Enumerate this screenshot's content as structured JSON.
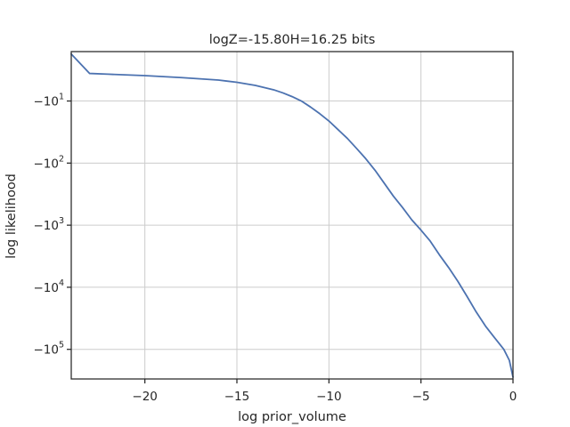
{
  "chart_data": {
    "type": "line",
    "title": "logZ=-15.80H=16.25 bits",
    "xlabel": "log prior_volume",
    "ylabel": "log likelihood",
    "xlim": [
      -24,
      0
    ],
    "ylim": [
      -300000,
      -1.6
    ],
    "yscale": "symlog",
    "grid": true,
    "x_ticks": [
      -20,
      -15,
      -10,
      -5,
      0
    ],
    "x_tick_labels": [
      "−20",
      "−15",
      "−10",
      "−5",
      "0"
    ],
    "y_ticks": [
      -10,
      -100,
      -1000,
      -10000,
      -100000
    ],
    "y_tick_labels": [
      {
        "base": "−10",
        "exp": "1"
      },
      {
        "base": "−10",
        "exp": "2"
      },
      {
        "base": "−10",
        "exp": "3"
      },
      {
        "base": "−10",
        "exp": "4"
      },
      {
        "base": "−10",
        "exp": "5"
      }
    ],
    "line_color": "#4c72b0",
    "series": [
      {
        "x": [
          -24.0,
          -23.0,
          -22.0,
          -20.0,
          -18.0,
          -16.0,
          -15.0,
          -14.0,
          -13.0,
          -12.5,
          -12.0,
          -11.5,
          -11.0,
          -10.5,
          -10.0,
          -9.5,
          -9.0,
          -8.5,
          -8.0,
          -7.5,
          -7.0,
          -6.5,
          -6.0,
          -5.5,
          -5.0,
          -4.5,
          -4.0,
          -3.5,
          -3.0,
          -2.5,
          -2.0,
          -1.5,
          -1.0,
          -0.5,
          -0.2,
          0.0
        ],
        "y": [
          -1.75,
          -3.6,
          -3.7,
          -3.9,
          -4.2,
          -4.6,
          -5.0,
          -5.6,
          -6.6,
          -7.4,
          -8.5,
          -10.0,
          -12.5,
          -16.0,
          -21.0,
          -29.0,
          -40.0,
          -58.0,
          -85.0,
          -130.0,
          -210.0,
          -340.0,
          -520.0,
          -820.0,
          -1200.0,
          -1800.0,
          -3000.0,
          -4800.0,
          -8000.0,
          -14000.0,
          -25000.0,
          -42000.0,
          -65000.0,
          -100000.0,
          -150000.0,
          -280000.0
        ]
      }
    ]
  }
}
